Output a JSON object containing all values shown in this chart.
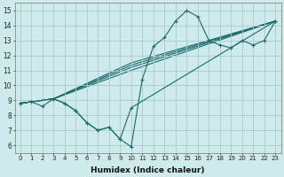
{
  "bg_color": "#ceeaea",
  "grid_color": "#a8cccc",
  "line_color": "#1a6b6b",
  "xlabel": "Humidex (Indice chaleur)",
  "xlim": [
    -0.5,
    23.5
  ],
  "ylim": [
    5.5,
    15.5
  ],
  "yticks": [
    6,
    7,
    8,
    9,
    10,
    11,
    12,
    13,
    14,
    15
  ],
  "xticks": [
    0,
    1,
    2,
    3,
    4,
    5,
    6,
    7,
    8,
    9,
    10,
    11,
    12,
    13,
    14,
    15,
    16,
    17,
    18,
    19,
    20,
    21,
    22,
    23
  ],
  "series": [
    {
      "x": [
        0,
        1,
        2,
        3,
        4,
        5,
        6,
        7,
        8,
        9,
        10,
        11,
        12,
        13,
        14,
        15,
        16,
        17,
        18,
        19,
        20,
        21,
        22,
        23
      ],
      "y": [
        8.8,
        8.9,
        8.6,
        9.1,
        8.8,
        8.3,
        7.5,
        7.0,
        7.2,
        6.4,
        5.9,
        10.4,
        12.6,
        13.2,
        14.3,
        15.0,
        14.6,
        13.0,
        12.7,
        12.5,
        13.0,
        12.7,
        13.0,
        14.3
      ],
      "marker": "+"
    },
    {
      "x": [
        0,
        3,
        10,
        23
      ],
      "y": [
        8.8,
        9.1,
        11.0,
        14.3
      ],
      "marker": null
    },
    {
      "x": [
        0,
        3,
        10,
        23
      ],
      "y": [
        8.8,
        9.1,
        11.2,
        14.3
      ],
      "marker": null
    },
    {
      "x": [
        0,
        3,
        10,
        23
      ],
      "y": [
        8.8,
        9.1,
        11.35,
        14.3
      ],
      "marker": null
    },
    {
      "x": [
        0,
        3,
        10,
        23
      ],
      "y": [
        8.8,
        9.1,
        11.5,
        14.3
      ],
      "marker": null
    },
    {
      "x": [
        0,
        3,
        4,
        5,
        6,
        7,
        8,
        9,
        10,
        23
      ],
      "y": [
        8.8,
        9.1,
        8.8,
        8.3,
        7.5,
        7.0,
        7.2,
        6.4,
        8.5,
        14.3
      ],
      "marker": "+"
    }
  ]
}
